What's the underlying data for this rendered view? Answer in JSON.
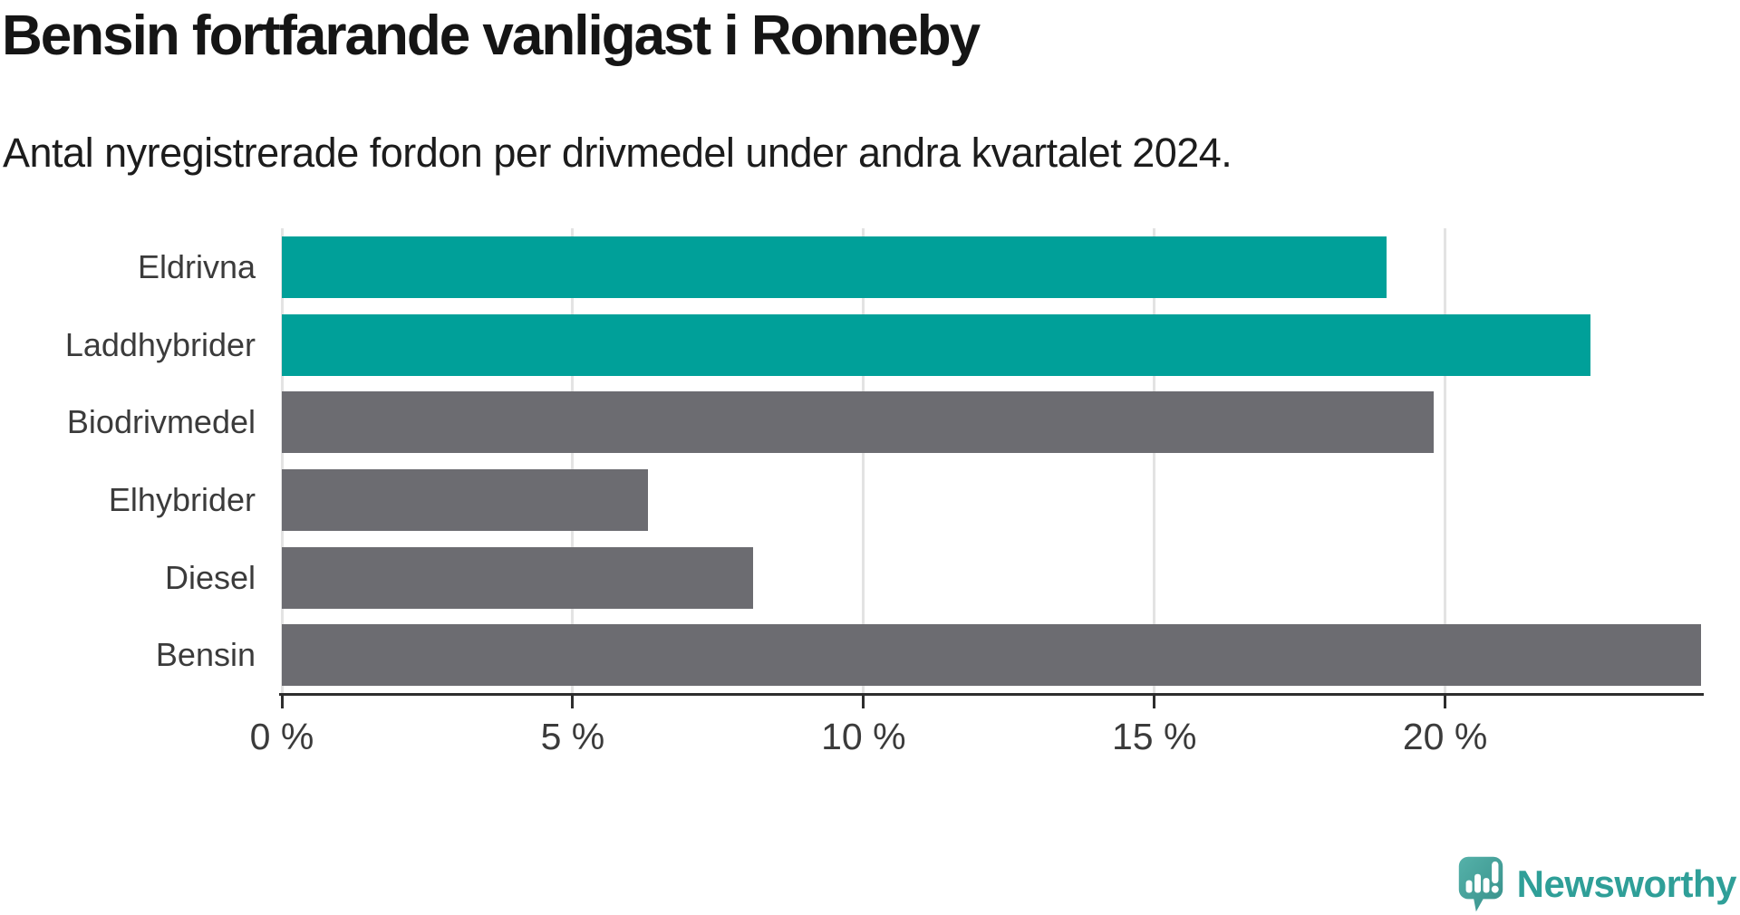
{
  "header": {
    "title": "Bensin fortfarande vanligast i Ronneby",
    "subtitle": "Antal nyregistrerade fordon per drivmedel under andra kvartalet 2024."
  },
  "chart_data": {
    "type": "bar",
    "orientation": "horizontal",
    "title": "Bensin fortfarande vanligast i Ronneby",
    "subtitle": "Antal nyregistrerade fordon per drivmedel under andra kvartalet 2024.",
    "categories": [
      "Eldrivna",
      "Laddhybrider",
      "Biodrivmedel",
      "Elhybrider",
      "Diesel",
      "Bensin"
    ],
    "values": [
      19.0,
      22.5,
      19.8,
      6.3,
      8.1,
      24.4
    ],
    "unit": "%",
    "bar_colors": [
      "#00a099",
      "#00a099",
      "#6c6c71",
      "#6c6c71",
      "#6c6c71",
      "#6c6c71"
    ],
    "xlim": [
      0,
      24.4
    ],
    "x_ticks": [
      {
        "value": 0,
        "label": "0 %"
      },
      {
        "value": 5,
        "label": "5 %"
      },
      {
        "value": 10,
        "label": "10 %"
      },
      {
        "value": 15,
        "label": "15 %"
      },
      {
        "value": 20,
        "label": "20 %"
      }
    ],
    "grid": true,
    "legend": "none"
  },
  "colors": {
    "highlight_bar": "#00a099",
    "default_bar": "#6c6c71",
    "gridline": "#e3e3e3",
    "axis": "#2d2d2d",
    "label_text": "#3b3b3b",
    "title_text": "#151515",
    "brand_teal": "#2f9f98"
  },
  "branding": {
    "logo_text": "Newsworthy",
    "logo_mark": "speech-bubble-bar-chart-exclamation-icon"
  }
}
